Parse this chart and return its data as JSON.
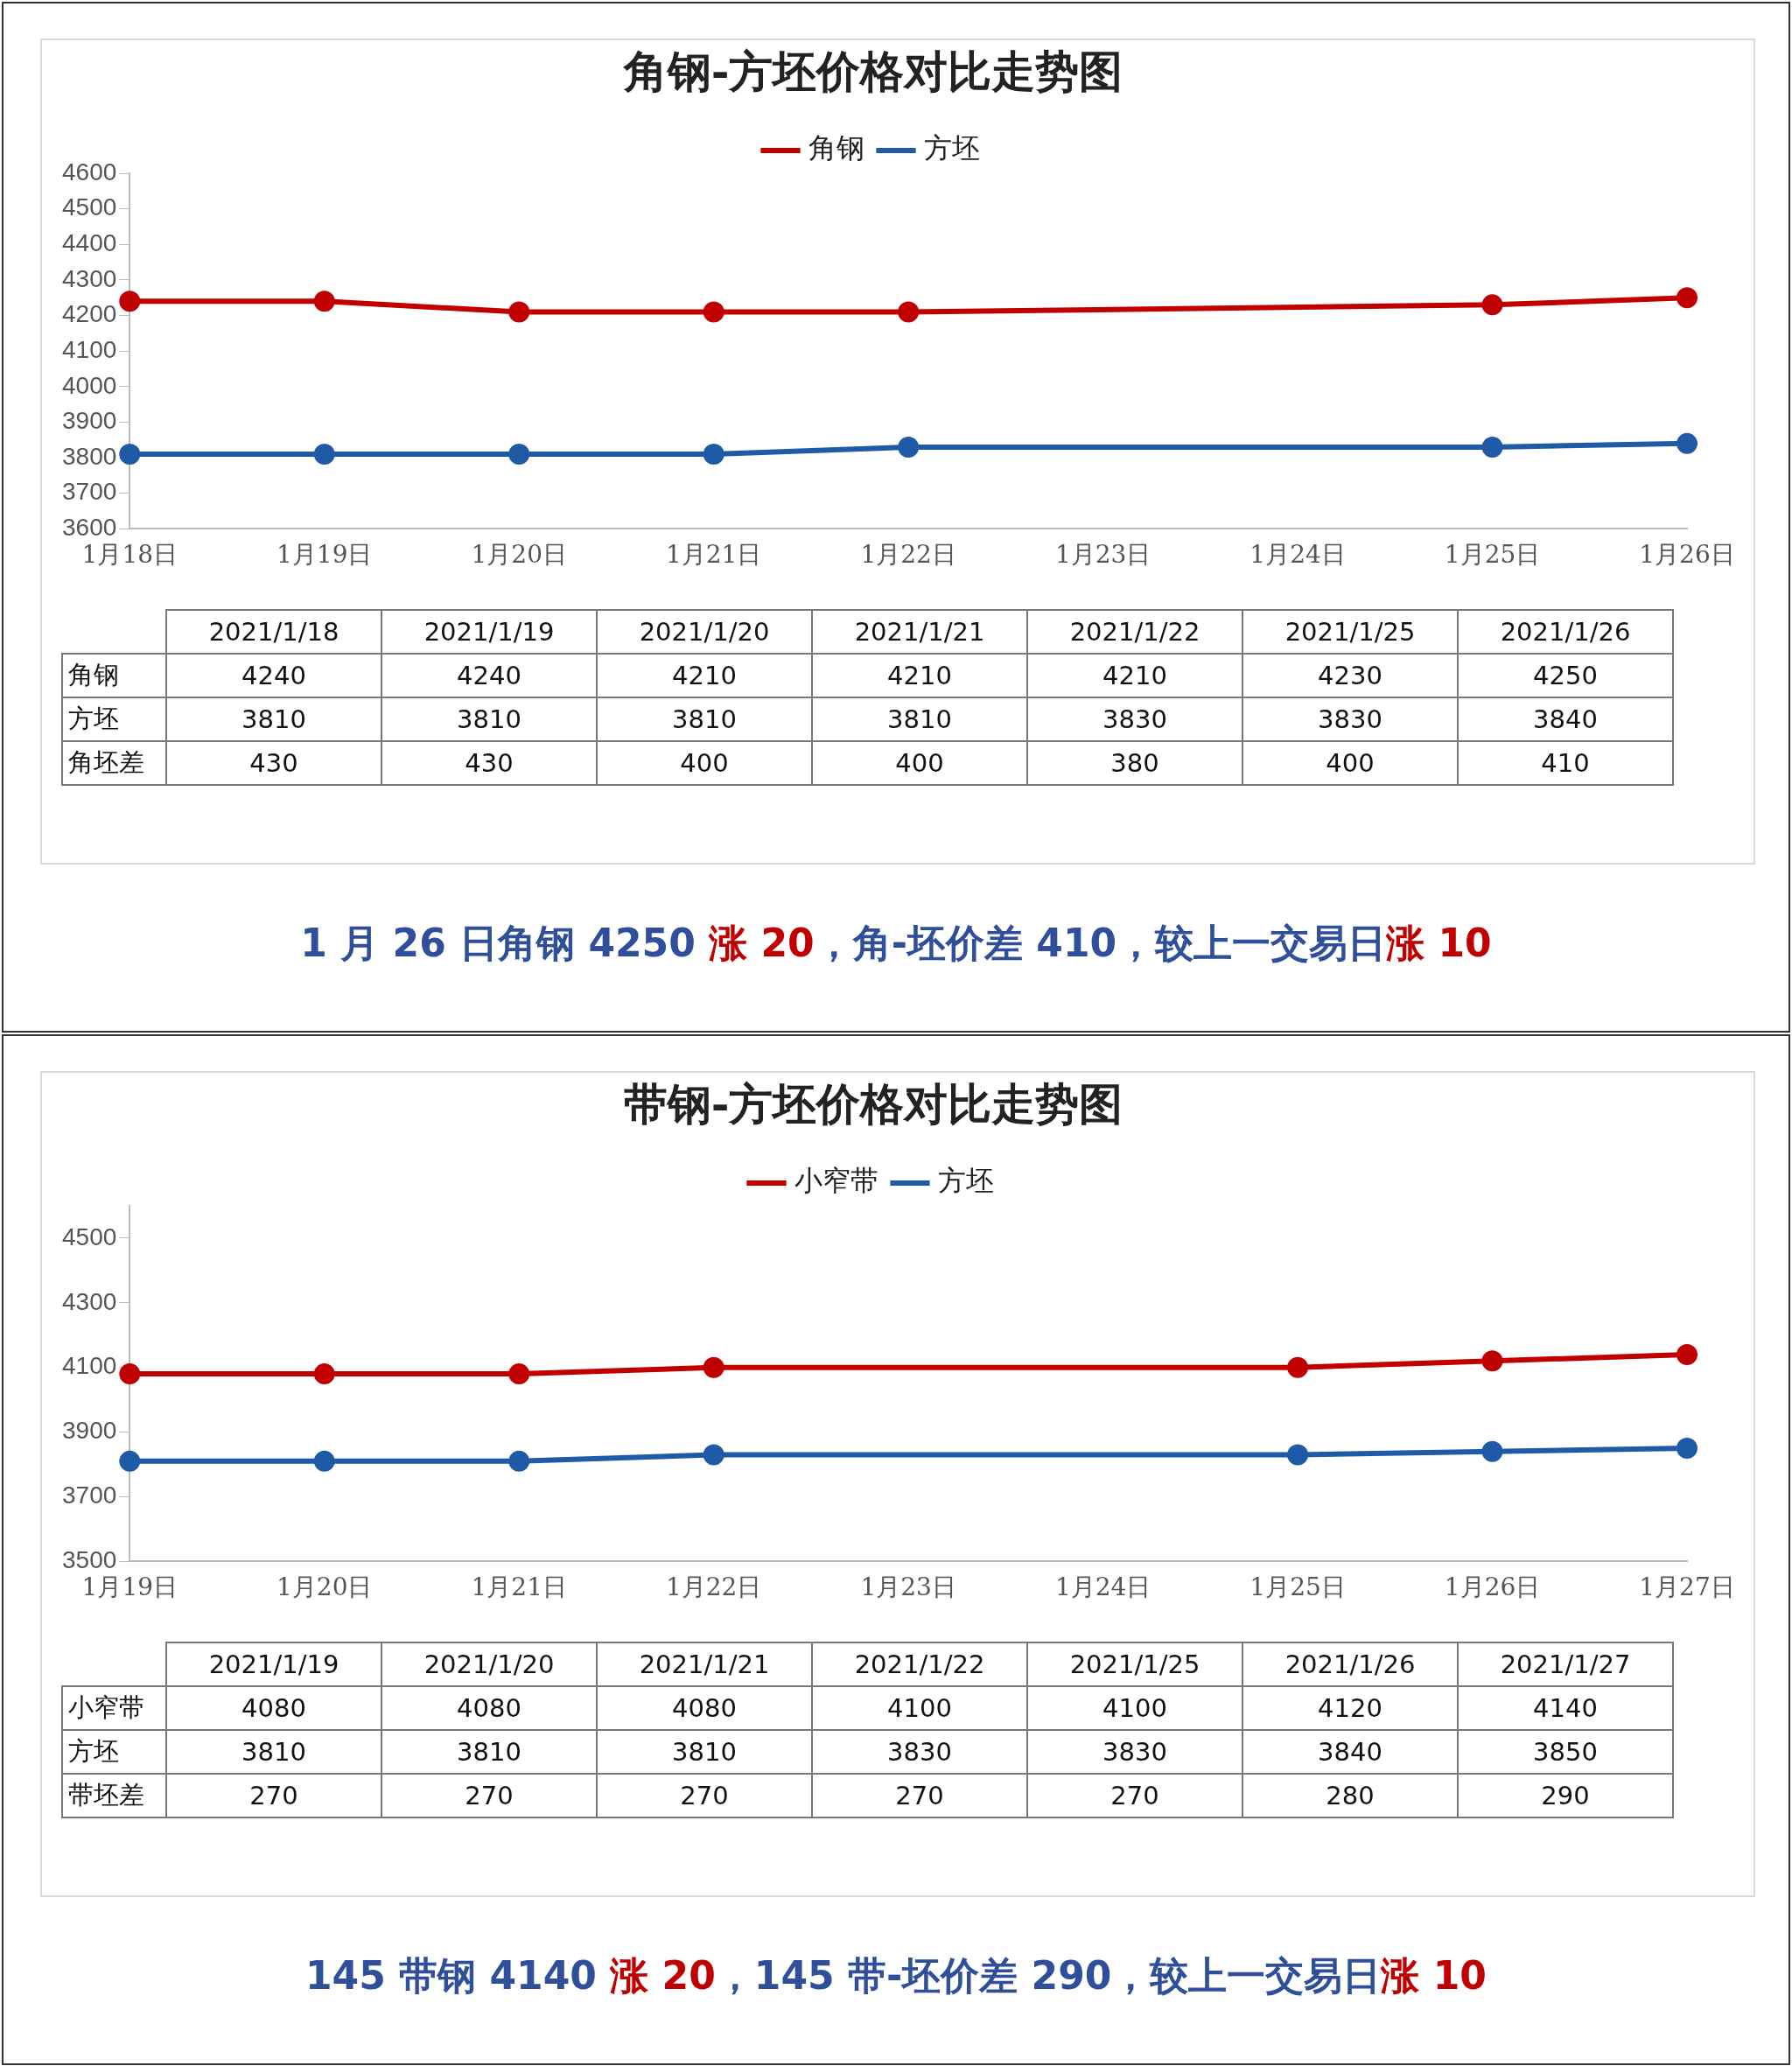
{
  "chart_data": [
    {
      "type": "line",
      "title": "角钢-方坯价格对比走势图",
      "categories": [
        "1月18日",
        "1月19日",
        "1月20日",
        "1月21日",
        "1月22日",
        "1月23日",
        "1月24日",
        "1月25日",
        "1月26日"
      ],
      "series": [
        {
          "name": "角钢",
          "color": "#c00000",
          "values": [
            4240,
            4240,
            4210,
            4210,
            4210,
            null,
            null,
            4230,
            4250
          ]
        },
        {
          "name": "方坯",
          "color": "#1f5aa6",
          "values": [
            3810,
            3810,
            3810,
            3810,
            3830,
            null,
            null,
            3830,
            3840
          ]
        }
      ],
      "ylim": [
        3600,
        4600
      ],
      "yticks": [
        3600,
        3700,
        3800,
        3900,
        4000,
        4100,
        4200,
        4300,
        4400,
        4500,
        4600
      ],
      "grid": false,
      "legend": "top",
      "marker": "circle"
    },
    {
      "type": "other",
      "categories": [
        "2021/1/18",
        "2021/1/19",
        "2021/1/20",
        "2021/1/21",
        "2021/1/22",
        "2021/1/25",
        "2021/1/26"
      ],
      "series": [
        {
          "name": "角钢",
          "values": [
            4240,
            4240,
            4210,
            4210,
            4210,
            4230,
            4250
          ]
        },
        {
          "name": "方坯",
          "values": [
            3810,
            3810,
            3810,
            3810,
            3830,
            3830,
            3840
          ]
        },
        {
          "name": "角坯差",
          "values": [
            430,
            430,
            400,
            400,
            380,
            400,
            410
          ]
        }
      ],
      "data_labels": true,
      "annotations": [
        "1 月 26 日角钢 4250 ",
        "涨 20",
        "，角-坯价差 410，较上一交易日",
        "涨 10"
      ]
    },
    {
      "type": "line",
      "title": "带钢-方坯价格对比走势图",
      "categories": [
        "1月19日",
        "1月20日",
        "1月21日",
        "1月22日",
        "1月23日",
        "1月24日",
        "1月25日",
        "1月26日",
        "1月27日"
      ],
      "series": [
        {
          "name": "小窄带",
          "color": "#c00000",
          "values": [
            4080,
            4080,
            4080,
            4100,
            null,
            null,
            4100,
            4120,
            4140
          ]
        },
        {
          "name": "方坯",
          "color": "#1f5aa6",
          "values": [
            3810,
            3810,
            3810,
            3830,
            null,
            null,
            3830,
            3840,
            3850
          ]
        }
      ],
      "ylim": [
        3500,
        4600
      ],
      "yticks": [
        3500,
        3700,
        3900,
        4100,
        4300,
        4500
      ],
      "grid": false,
      "legend": "top",
      "marker": "circle"
    },
    {
      "type": "other",
      "categories": [
        "2021/1/19",
        "2021/1/20",
        "2021/1/21",
        "2021/1/22",
        "2021/1/25",
        "2021/1/26",
        "2021/1/27"
      ],
      "series": [
        {
          "name": "小窄带",
          "values": [
            4080,
            4080,
            4080,
            4100,
            4100,
            4120,
            4140
          ]
        },
        {
          "name": "方坯",
          "values": [
            3810,
            3810,
            3810,
            3830,
            3830,
            3840,
            3850
          ]
        },
        {
          "name": "带坯差",
          "values": [
            270,
            270,
            270,
            270,
            270,
            280,
            290
          ]
        }
      ],
      "data_labels": true,
      "annotations": [
        "145 带钢 4140 ",
        "涨 20",
        "，145 带-坯价差 290，较上一交易日",
        "涨 10"
      ]
    }
  ]
}
